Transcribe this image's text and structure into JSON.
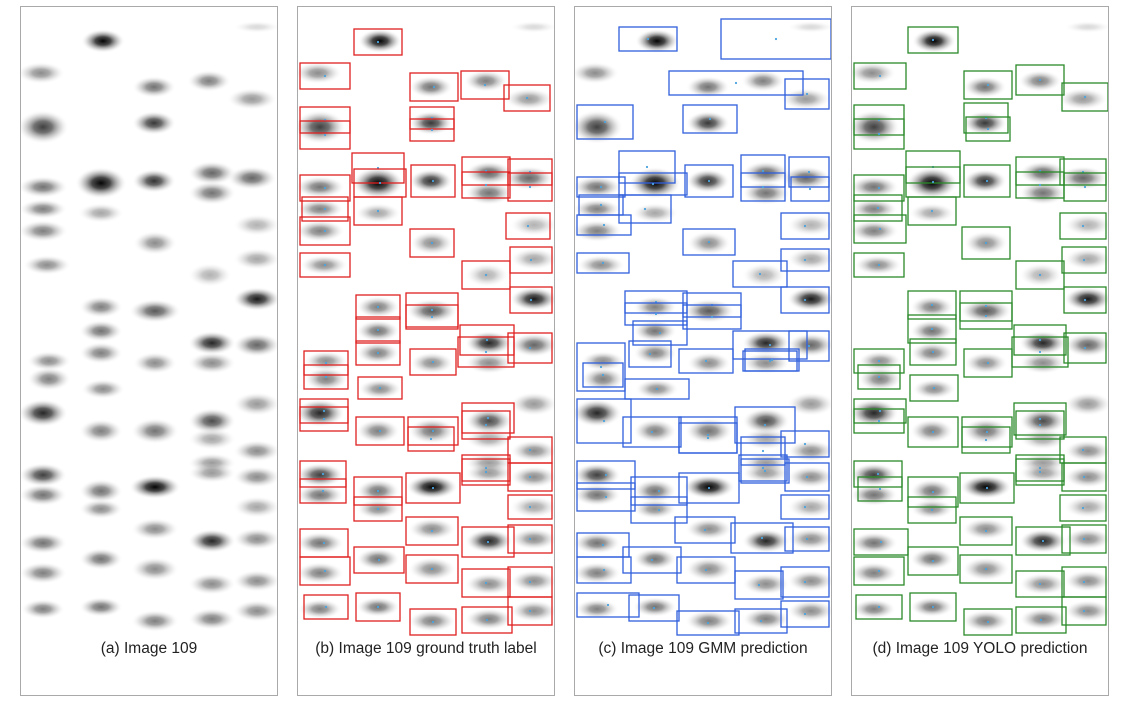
{
  "panels": [
    {
      "caption": "(a) Image 109",
      "boxes": "none",
      "box_color": ""
    },
    {
      "caption": "(b) Image 109 ground truth label",
      "boxes": "ground-truth",
      "box_color": "#e02020"
    },
    {
      "caption": "(c) Image 109 GMM prediction",
      "boxes": "gmm",
      "box_color": "#2f5fdc"
    },
    {
      "caption": "(d) Image 109 YOLO prediction",
      "boxes": "yolo",
      "box_color": "#2a8a2a"
    }
  ],
  "center_color": "#4aa3df"
}
